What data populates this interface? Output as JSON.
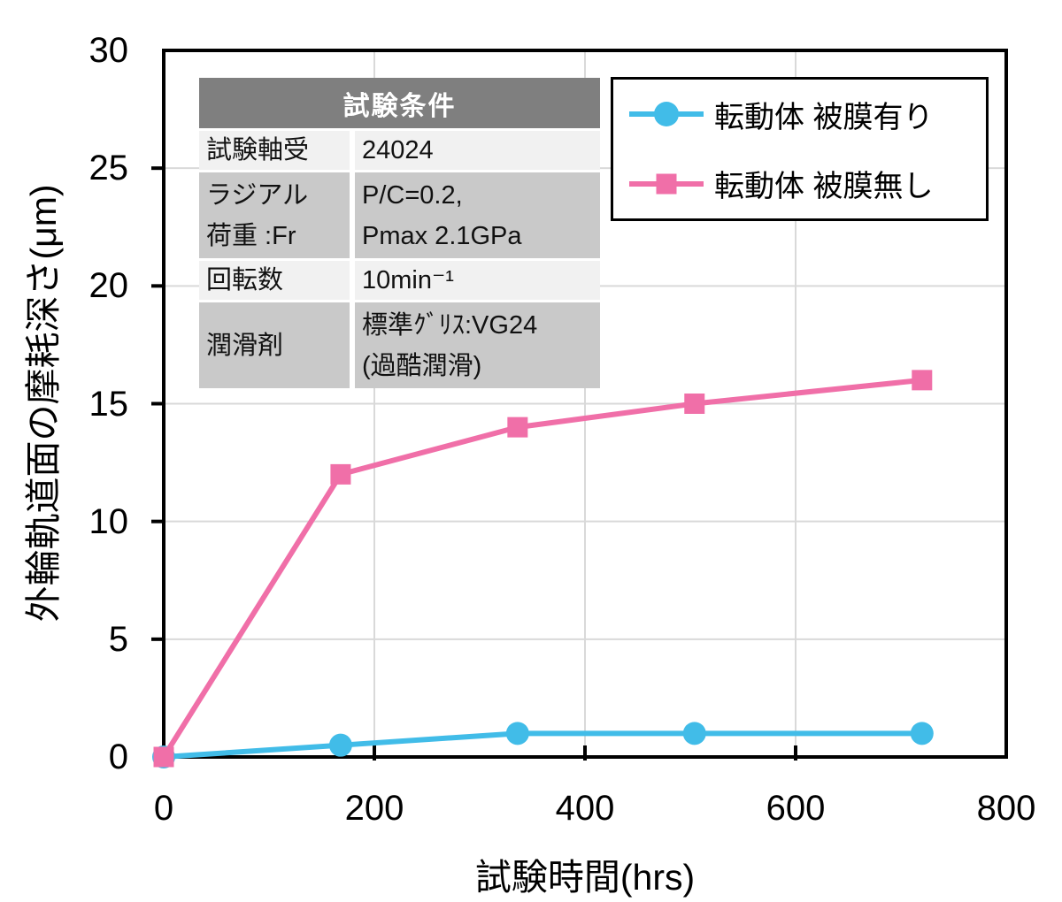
{
  "chart_data": {
    "type": "line",
    "title": "",
    "xlabel": "試験時間(hrs)",
    "ylabel": "外輪軌道面の摩耗深さ(μm)",
    "xlim": [
      0,
      800
    ],
    "ylim": [
      0,
      30
    ],
    "xticks": [
      0,
      200,
      400,
      600,
      800
    ],
    "yticks": [
      0,
      5,
      10,
      15,
      20,
      25,
      30
    ],
    "grid": true,
    "grid_color": "#d9d9d9",
    "axis_color": "#000000",
    "legend_position": "top-right",
    "x": [
      0,
      168,
      336,
      504,
      720
    ],
    "series": [
      {
        "name": "転動体 被膜有り",
        "color": "#41bce8",
        "marker": "circle",
        "values": [
          0,
          0.5,
          1,
          1,
          1
        ]
      },
      {
        "name": "転動体 被膜無し",
        "color": "#f06fa8",
        "marker": "square",
        "values": [
          0,
          12,
          14,
          15,
          16
        ]
      }
    ]
  },
  "table": {
    "header": "試験条件",
    "rows": [
      {
        "label": "試験軸受",
        "value": "24024"
      },
      {
        "label": "ラジアル\n荷重 :Fr",
        "value": "P/C=0.2,\nPmax 2.1GPa"
      },
      {
        "label": "回転数",
        "value": "10min⁻¹"
      },
      {
        "label": "潤滑剤",
        "value": "標準ｸﾞﾘｽ:VG24\n(過酷潤滑)"
      }
    ]
  }
}
